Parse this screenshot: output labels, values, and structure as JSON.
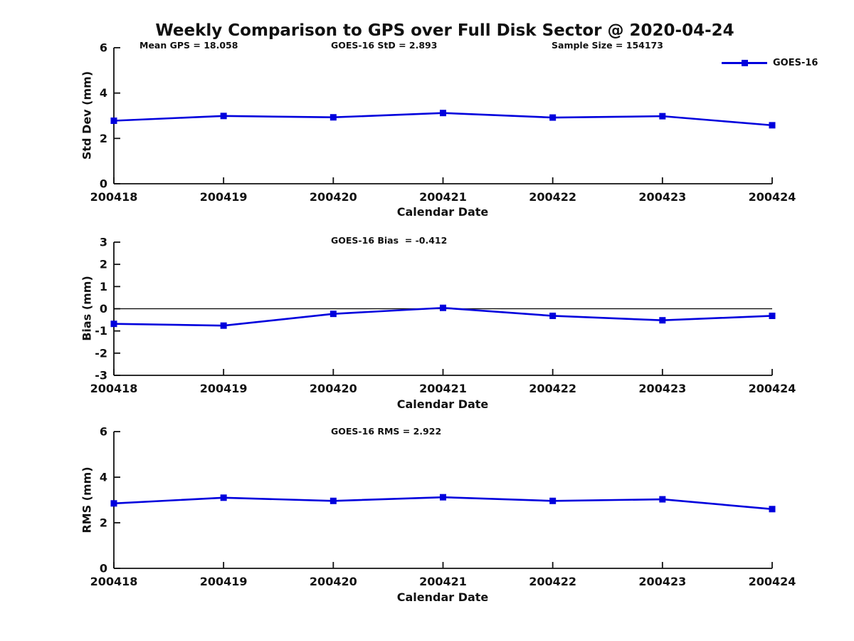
{
  "figure": {
    "title": "Weekly Comparison to GPS over Full Disk Sector @ 2020-04-24",
    "background": "#ffffff",
    "line_color": "#0000dd",
    "axis_color": "#111111",
    "text_color": "#111111"
  },
  "header_annotations": {
    "mean_gps": "Mean GPS = 18.058",
    "std": "GOES-16 StD = 2.893",
    "sample_size": "Sample Size = 154173"
  },
  "legend": {
    "label": "GOES-16",
    "marker": "square-marker-icon",
    "position": "top-right"
  },
  "chart_data": [
    {
      "type": "line",
      "name": "std-dev",
      "subtitle": "",
      "xlabel": "Calendar Date",
      "ylabel": "Std Dev (mm)",
      "categories": [
        "200418",
        "200419",
        "200420",
        "200421",
        "200422",
        "200423",
        "200424"
      ],
      "series": [
        {
          "name": "GOES-16",
          "values": [
            2.78,
            2.99,
            2.93,
            3.12,
            2.92,
            2.98,
            2.58
          ]
        }
      ],
      "ylim": [
        0,
        6
      ],
      "yticks": [
        0,
        2,
        4,
        6
      ],
      "zero_line": false,
      "grid": false
    },
    {
      "type": "line",
      "name": "bias",
      "subtitle": "GOES-16 Bias  = -0.412",
      "xlabel": "Calendar Date",
      "ylabel": "Bias (mm)",
      "categories": [
        "200418",
        "200419",
        "200420",
        "200421",
        "200422",
        "200423",
        "200424"
      ],
      "series": [
        {
          "name": "GOES-16",
          "values": [
            -0.68,
            -0.76,
            -0.23,
            0.04,
            -0.32,
            -0.52,
            -0.32
          ]
        }
      ],
      "ylim": [
        -3,
        3
      ],
      "yticks": [
        -3,
        -2,
        -1,
        0,
        1,
        2,
        3
      ],
      "zero_line": true,
      "grid": false
    },
    {
      "type": "line",
      "name": "rms",
      "subtitle": "GOES-16 RMS = 2.922",
      "xlabel": "Calendar Date",
      "ylabel": "RMS (mm)",
      "categories": [
        "200418",
        "200419",
        "200420",
        "200421",
        "200422",
        "200423",
        "200424"
      ],
      "series": [
        {
          "name": "GOES-16",
          "values": [
            2.85,
            3.1,
            2.96,
            3.12,
            2.96,
            3.03,
            2.6
          ]
        }
      ],
      "ylim": [
        0,
        6
      ],
      "yticks": [
        0,
        2,
        4,
        6
      ],
      "zero_line": false,
      "grid": false
    }
  ]
}
